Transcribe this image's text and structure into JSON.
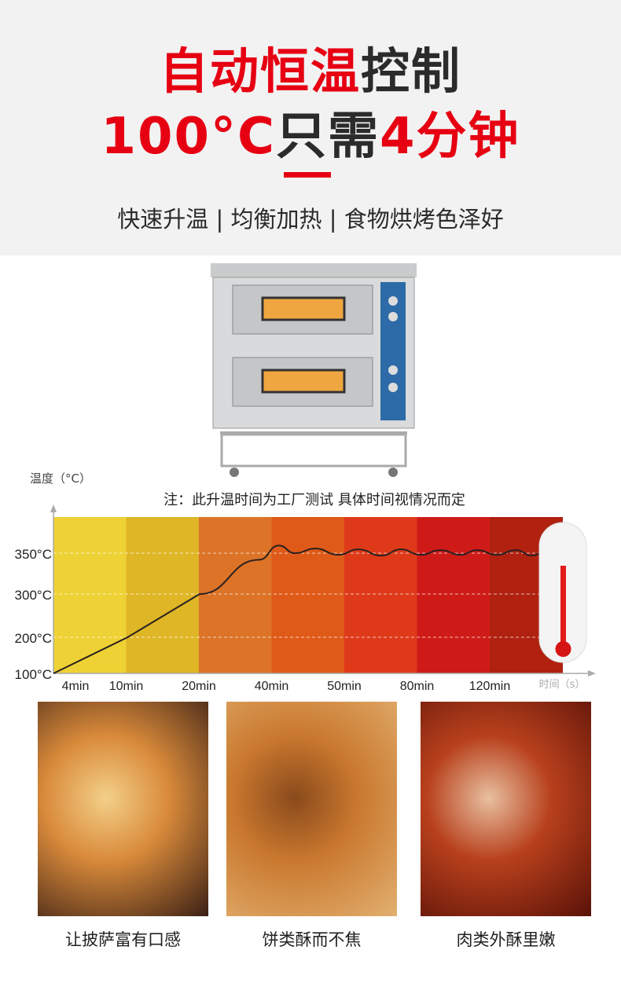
{
  "header": {
    "line1": [
      {
        "text": "自动恒温",
        "color": "#e60012"
      },
      {
        "text": "控制",
        "color": "#2b2b2b"
      }
    ],
    "line2": [
      {
        "text": "100°C",
        "color": "#e60012"
      },
      {
        "text": "只需",
        "color": "#2b2b2b"
      },
      {
        "text": "4分钟",
        "color": "#e60012"
      }
    ],
    "subtitle": "快速升温 | 均衡加热 | 食物烘烤色泽好"
  },
  "chart_note": "注：此升温时间为工厂测试  具体时间视情况而定",
  "chart_data": {
    "type": "line",
    "ylabel": "温度（°C）",
    "xlabel": "时间（s）",
    "categories": [
      "4min",
      "10min",
      "20min",
      "40min",
      "50min",
      "80min",
      "120min"
    ],
    "band_colors": [
      "#eed134",
      "#dfb626",
      "#dc7327",
      "#df5a18",
      "#de3a1a",
      "#cf1b17",
      "#b0210f"
    ],
    "y_ticks": [
      {
        "label": "100°C",
        "value": 100
      },
      {
        "label": "200°C",
        "value": 200
      },
      {
        "label": "300°C",
        "value": 300
      },
      {
        "label": "350°C",
        "value": 350
      }
    ],
    "grid": true,
    "series": [
      {
        "points": [
          [
            0,
            100
          ],
          [
            1.02,
            200
          ],
          [
            2.01,
            300
          ],
          [
            2.83,
            342
          ],
          [
            3.1,
            360
          ],
          [
            3.32,
            350
          ],
          [
            3.6,
            356
          ],
          [
            3.92,
            348
          ],
          [
            4.19,
            355
          ],
          [
            4.51,
            347
          ],
          [
            4.78,
            355
          ],
          [
            5.05,
            348
          ],
          [
            5.32,
            354
          ],
          [
            5.6,
            348
          ],
          [
            5.82,
            354
          ],
          [
            6.1,
            348
          ],
          [
            6.36,
            354
          ],
          [
            6.58,
            347
          ],
          [
            6.72,
            350
          ]
        ]
      }
    ]
  },
  "foods": [
    {
      "caption": "让披萨富有口感",
      "colors": [
        "#3a2015",
        "#d98a3a",
        "#f3d089"
      ]
    },
    {
      "caption": "饼类酥而不焦",
      "colors": [
        "#e2b070",
        "#c9782e",
        "#8a4a1c"
      ]
    },
    {
      "caption": "肉类外酥里嫩",
      "colors": [
        "#5a1208",
        "#b8401c",
        "#e8c0a0"
      ]
    }
  ]
}
